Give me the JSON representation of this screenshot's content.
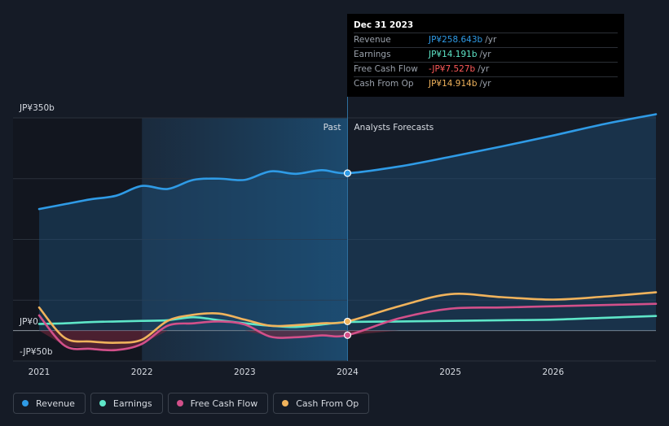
{
  "tooltip": {
    "date": "Dec 31 2023",
    "rows": [
      {
        "label": "Revenue",
        "value": "JP¥258.643b",
        "unit": "/yr",
        "color": "#2f9be6"
      },
      {
        "label": "Earnings",
        "value": "JP¥14.191b",
        "unit": "/yr",
        "color": "#5ee6c8"
      },
      {
        "label": "Free Cash Flow",
        "value": "-JP¥7.527b",
        "unit": "/yr",
        "color": "#ff5a5a"
      },
      {
        "label": "Cash From Op",
        "value": "JP¥14.914b",
        "unit": "/yr",
        "color": "#f0b35c"
      }
    ]
  },
  "sections": {
    "past": "Past",
    "forecast": "Analysts Forecasts"
  },
  "legend": [
    {
      "label": "Revenue",
      "color": "#2f9be6"
    },
    {
      "label": "Earnings",
      "color": "#5ee6c8"
    },
    {
      "label": "Free Cash Flow",
      "color": "#d2508a"
    },
    {
      "label": "Cash From Op",
      "color": "#f0b35c"
    }
  ],
  "chart_data": {
    "type": "line",
    "y_tick_labels": {
      "top": "JP¥350b",
      "zero": "JP¥0",
      "bottom": "-JP¥50b"
    },
    "ylim": [
      -50,
      350
    ],
    "xlim": [
      2021.0,
      2027.0
    ],
    "x_ticks": [
      2021,
      2022,
      2023,
      2024,
      2025,
      2026
    ],
    "x_tick_labels": [
      "2021",
      "2022",
      "2023",
      "2024",
      "2025",
      "2026"
    ],
    "past_region_start": 2022.0,
    "divider_x": 2024.0,
    "highlight_x": 2024.0,
    "grid": true,
    "series": [
      {
        "name": "Revenue",
        "color": "#2f9be6",
        "x": [
          2021.0,
          2021.25,
          2021.5,
          2021.75,
          2022.0,
          2022.25,
          2022.5,
          2022.75,
          2023.0,
          2023.25,
          2023.5,
          2023.75,
          2024.0,
          2024.5,
          2025.0,
          2025.5,
          2026.0,
          2026.5,
          2027.0
        ],
        "y": [
          200,
          208,
          216,
          222,
          238,
          233,
          248,
          250,
          248,
          262,
          258,
          264,
          259,
          270,
          286,
          303,
          321,
          340,
          356
        ]
      },
      {
        "name": "Earnings",
        "color": "#5ee6c8",
        "x": [
          2021.0,
          2021.25,
          2021.5,
          2021.75,
          2022.0,
          2022.25,
          2022.5,
          2022.75,
          2023.0,
          2023.25,
          2023.5,
          2023.75,
          2024.0,
          2024.5,
          2025.0,
          2025.5,
          2026.0,
          2026.5,
          2027.0
        ],
        "y": [
          11,
          12,
          14,
          15,
          16,
          17,
          22,
          17,
          12,
          8,
          6,
          10,
          14,
          15,
          16,
          17,
          18,
          21,
          24
        ]
      },
      {
        "name": "Free Cash Flow",
        "color": "#d2508a",
        "x": [
          2021.0,
          2021.25,
          2021.5,
          2021.75,
          2022.0,
          2022.25,
          2022.5,
          2022.75,
          2023.0,
          2023.25,
          2023.5,
          2023.75,
          2024.0,
          2024.5,
          2025.0,
          2025.5,
          2026.0,
          2026.5,
          2027.0
        ],
        "y": [
          25,
          -25,
          -30,
          -32,
          -22,
          8,
          12,
          15,
          10,
          -10,
          -11,
          -8,
          -7.5,
          20,
          36,
          38,
          40,
          42,
          44
        ]
      },
      {
        "name": "Cash From Op",
        "color": "#f0b35c",
        "x": [
          2021.0,
          2021.25,
          2021.5,
          2021.75,
          2022.0,
          2022.25,
          2022.5,
          2022.75,
          2023.0,
          2023.25,
          2023.5,
          2023.75,
          2024.0,
          2024.5,
          2025.0,
          2025.5,
          2026.0,
          2026.5,
          2027.0
        ],
        "y": [
          38,
          -12,
          -18,
          -20,
          -15,
          16,
          26,
          28,
          18,
          8,
          9,
          12,
          15,
          40,
          60,
          55,
          51,
          56,
          63
        ]
      }
    ]
  }
}
